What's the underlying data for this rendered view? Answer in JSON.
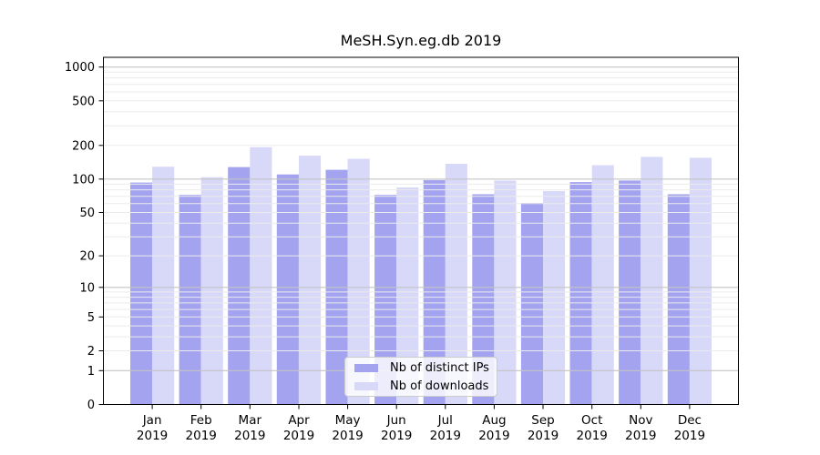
{
  "chart_data": {
    "type": "bar",
    "title": "MeSH.Syn.eg.db 2019",
    "categories": [
      "Jan",
      "Feb",
      "Mar",
      "Apr",
      "May",
      "Jun",
      "Jul",
      "Aug",
      "Sep",
      "Oct",
      "Nov",
      "Dec"
    ],
    "year_label": "2019",
    "series": [
      {
        "name": "Nb of distinct IPs",
        "color": "#a3a3f0",
        "values": [
          93,
          72,
          128,
          110,
          121,
          72,
          98,
          73,
          61,
          94,
          97,
          73
        ]
      },
      {
        "name": "Nb of downloads",
        "color": "#d8d8f8",
        "values": [
          129,
          104,
          193,
          162,
          152,
          84,
          137,
          97,
          78,
          133,
          158,
          155
        ]
      }
    ],
    "yscale": "log1p",
    "y_ticks": [
      0,
      1,
      2,
      5,
      10,
      20,
      50,
      100,
      200,
      500,
      1000
    ],
    "ylim": [
      0,
      1220
    ],
    "grid": "on",
    "legend_position": "lower-center",
    "colors": {
      "minor_grid": "#ebebeb",
      "decade_grid": "#c4c4c4",
      "axis": "#000000",
      "text": "#000000",
      "legend_border": "#cccccc"
    }
  }
}
